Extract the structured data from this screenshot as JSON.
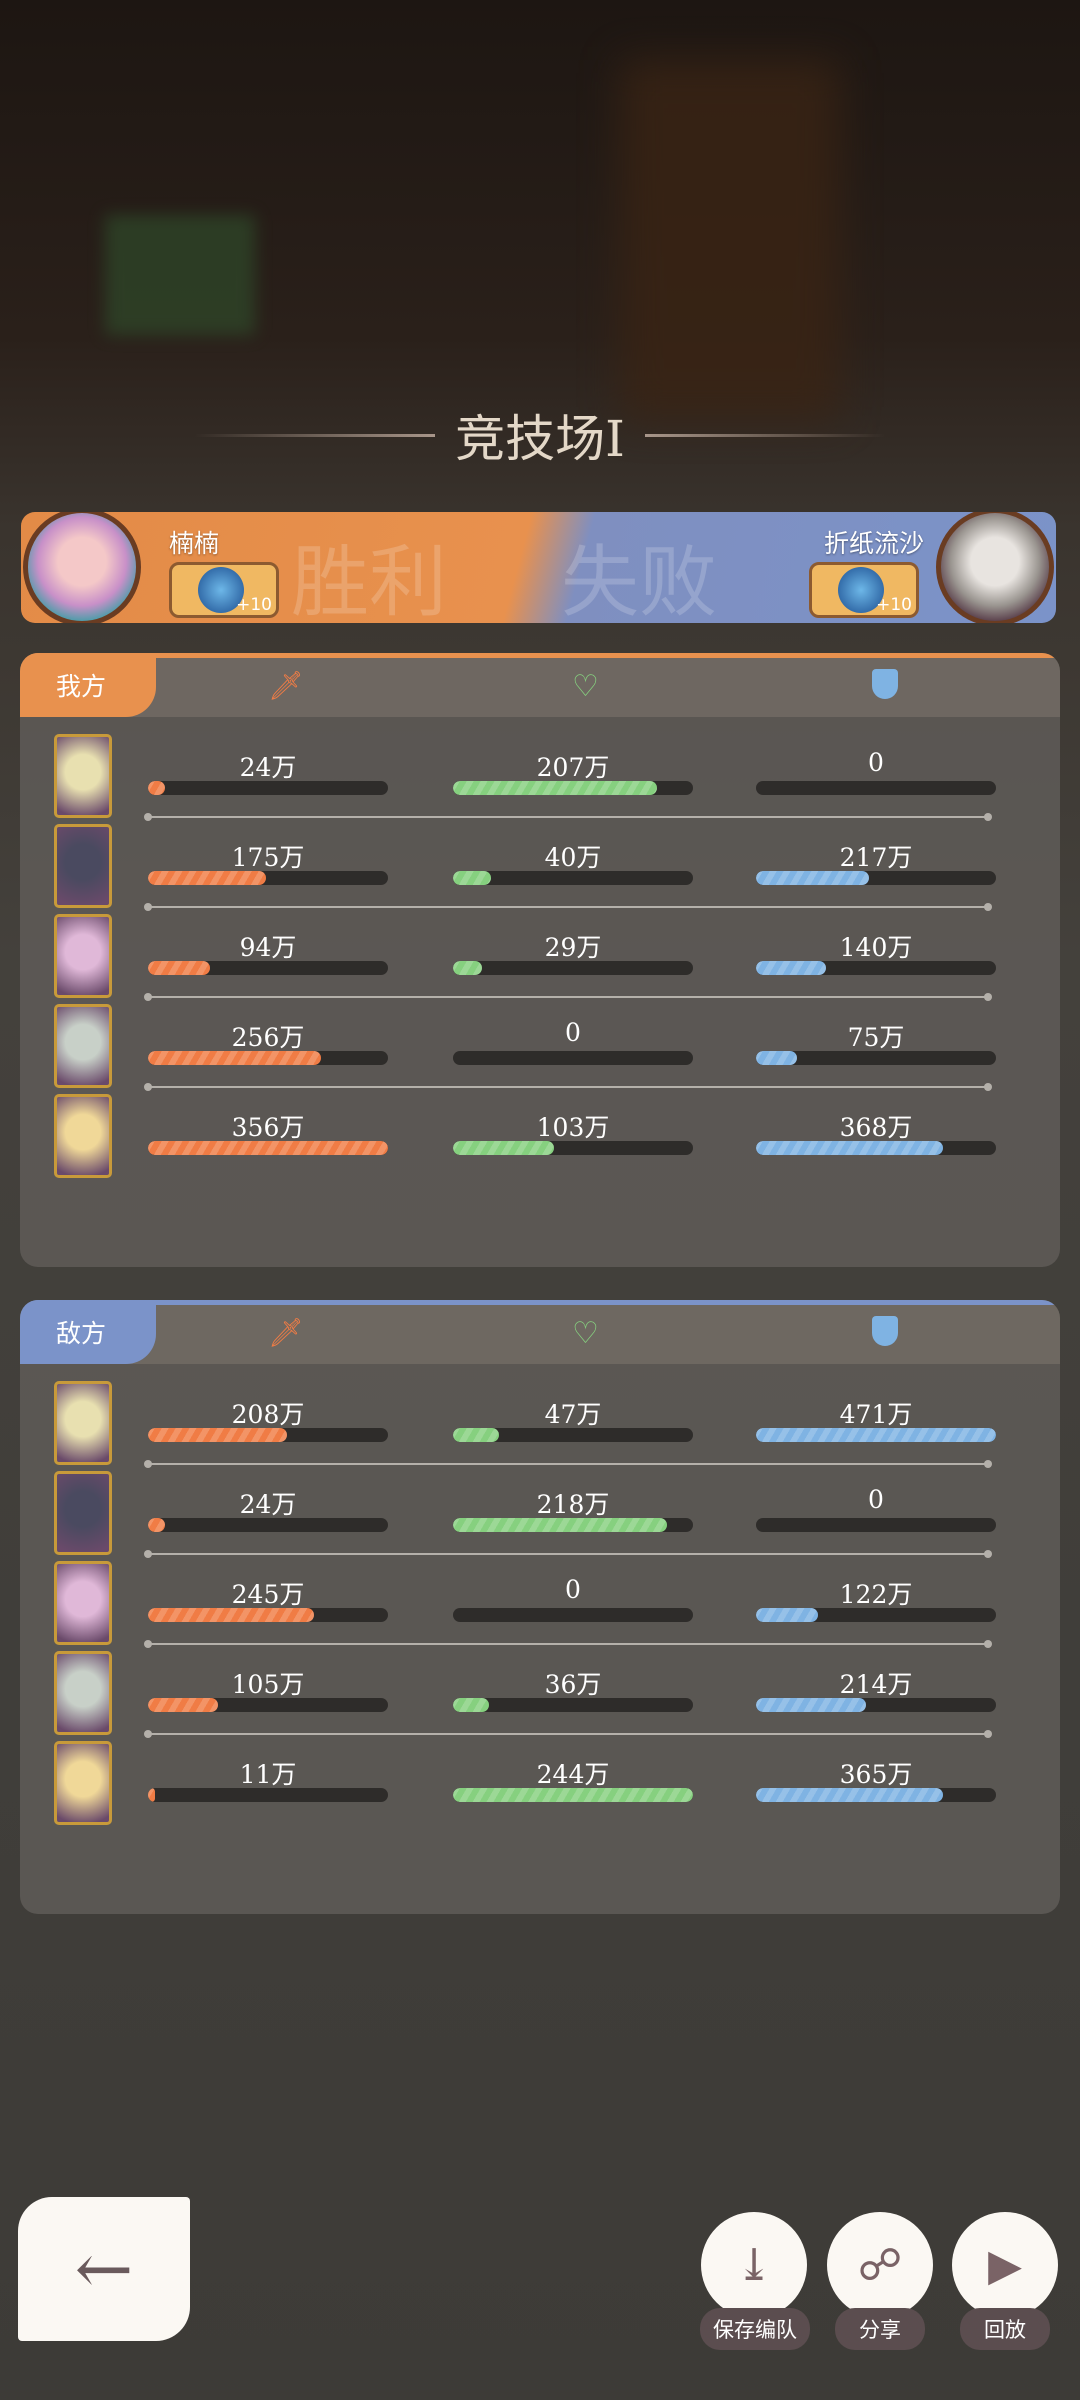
{
  "title": "竞技场Ⅰ",
  "banner": {
    "win_text": "胜利",
    "lose_text": "失败",
    "left_player": "楠楠",
    "right_player": "折纸流沙",
    "left_bonus": "+10",
    "right_bonus": "+10",
    "win_color": "#e8914e",
    "lose_color": "#7b93c9"
  },
  "columns": [
    "attack-sword-icon",
    "heal-heart-icon",
    "shield-icon"
  ],
  "colors": {
    "attack": "#f07c45",
    "heal": "#86d07f",
    "shield": "#7fb3e3"
  },
  "our_team": {
    "label": "我方",
    "rows": [
      {
        "attack": "24万",
        "attack_fill": 0.07,
        "heal": "207万",
        "heal_fill": 0.85,
        "shield": "0",
        "shield_fill": 0
      },
      {
        "attack": "175万",
        "attack_fill": 0.49,
        "heal": "40万",
        "heal_fill": 0.16,
        "shield": "217万",
        "shield_fill": 0.47
      },
      {
        "attack": "94万",
        "attack_fill": 0.26,
        "heal": "29万",
        "heal_fill": 0.12,
        "shield": "140万",
        "shield_fill": 0.29
      },
      {
        "attack": "256万",
        "attack_fill": 0.72,
        "heal": "0",
        "heal_fill": 0,
        "shield": "75万",
        "shield_fill": 0.17
      },
      {
        "attack": "356万",
        "attack_fill": 1.0,
        "heal": "103万",
        "heal_fill": 0.42,
        "shield": "368万",
        "shield_fill": 0.78
      }
    ]
  },
  "enemy_team": {
    "label": "敌方",
    "rows": [
      {
        "attack": "208万",
        "attack_fill": 0.58,
        "heal": "47万",
        "heal_fill": 0.19,
        "shield": "471万",
        "shield_fill": 1.0
      },
      {
        "attack": "24万",
        "attack_fill": 0.07,
        "heal": "218万",
        "heal_fill": 0.89,
        "shield": "0",
        "shield_fill": 0
      },
      {
        "attack": "245万",
        "attack_fill": 0.69,
        "heal": "0",
        "heal_fill": 0,
        "shield": "122万",
        "shield_fill": 0.26
      },
      {
        "attack": "105万",
        "attack_fill": 0.29,
        "heal": "36万",
        "heal_fill": 0.15,
        "shield": "214万",
        "shield_fill": 0.46
      },
      {
        "attack": "11万",
        "attack_fill": 0.03,
        "heal": "244万",
        "heal_fill": 1.0,
        "shield": "365万",
        "shield_fill": 0.78
      }
    ]
  },
  "actions": {
    "save_team": "保存编队",
    "share": "分享",
    "replay": "回放"
  }
}
